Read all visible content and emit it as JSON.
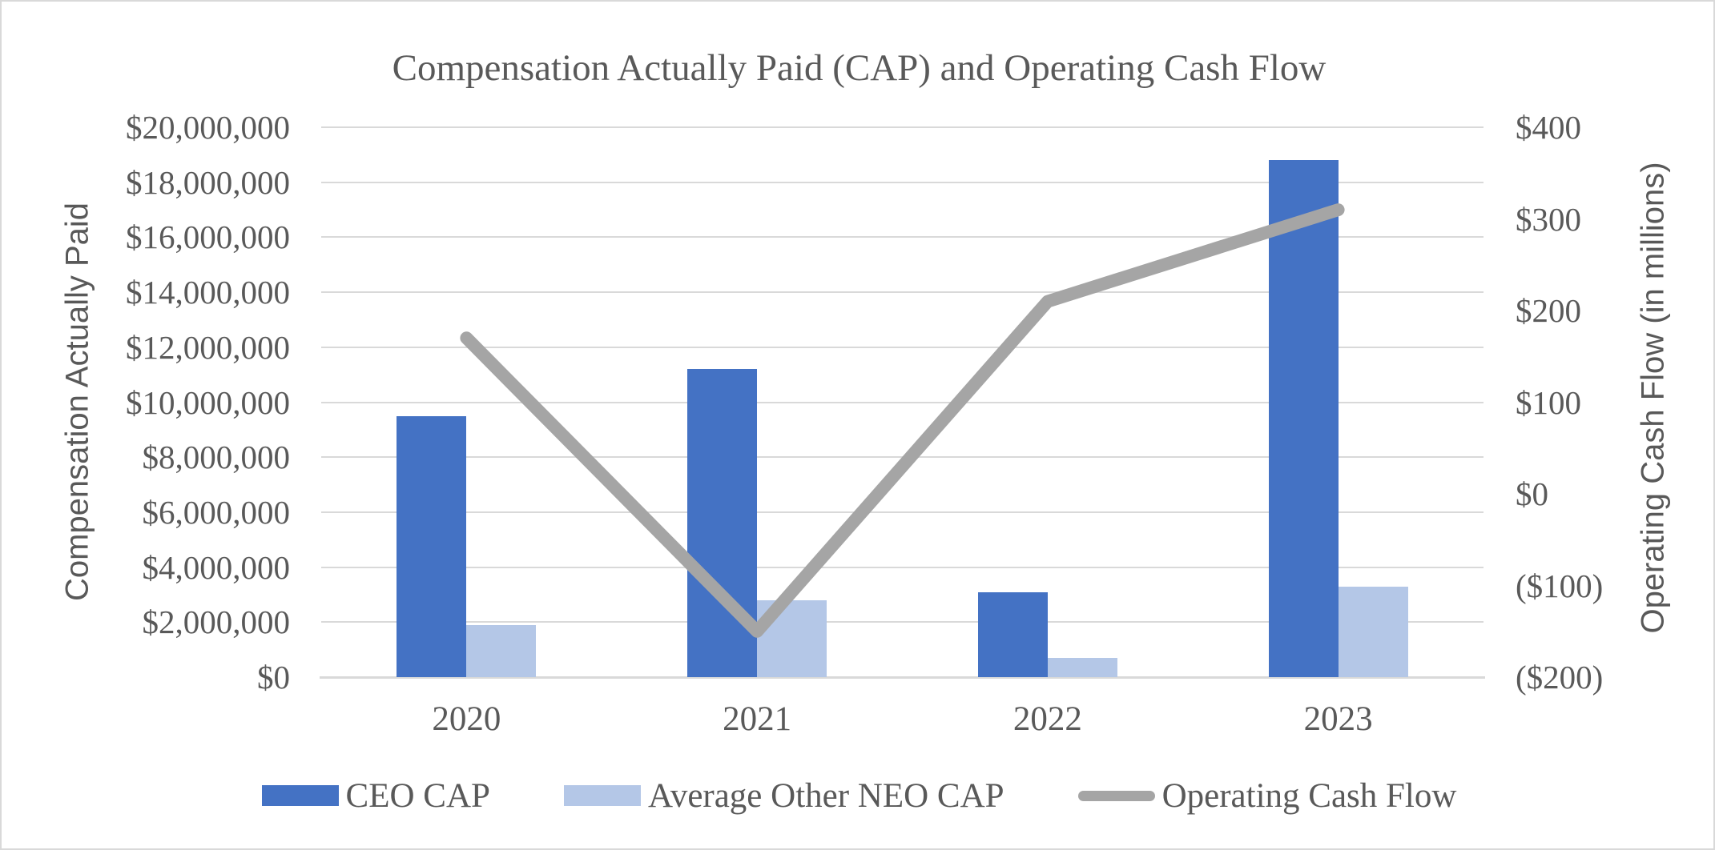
{
  "title": "Compensation Actually Paid (CAP) and Operating Cash Flow",
  "left_axis": {
    "title": "Compensation Actually Paid",
    "tick_labels": [
      "$20,000,000",
      "$18,000,000",
      "$16,000,000",
      "$14,000,000",
      "$12,000,000",
      "$10,000,000",
      "$8,000,000",
      "$6,000,000",
      "$4,000,000",
      "$2,000,000",
      "$0"
    ]
  },
  "right_axis": {
    "title": "Operating Cash Flow (in millions)",
    "tick_labels": [
      "$400",
      "$300",
      "$200",
      "$100",
      "$0",
      "($100)",
      "($200)"
    ]
  },
  "colors": {
    "ceo_bar": "#4472C4",
    "neo_bar": "#B4C7E7",
    "line": "#A5A5A5",
    "gridline": "#D9D9D9",
    "text": "#595959"
  },
  "chart_data": {
    "type": "combo",
    "categories": [
      "2020",
      "2021",
      "2022",
      "2023"
    ],
    "series": [
      {
        "name": "CEO CAP",
        "type": "bar",
        "axis": "left",
        "color": "#4472C4",
        "values": [
          9500000,
          11200000,
          3100000,
          18800000
        ]
      },
      {
        "name": "Average Other NEO CAP",
        "type": "bar",
        "axis": "left",
        "color": "#B4C7E7",
        "values": [
          1900000,
          2800000,
          700000,
          3300000
        ]
      },
      {
        "name": "Operating Cash Flow",
        "type": "line",
        "axis": "right",
        "color": "#A5A5A5",
        "values": [
          170,
          -150,
          210,
          310
        ]
      }
    ],
    "title": "Compensation Actually Paid (CAP) and Operating Cash Flow",
    "left_ylabel": "Compensation Actually Paid",
    "right_ylabel": "Operating Cash Flow (in millions)",
    "left_ylim": [
      0,
      20000000
    ],
    "left_step": 2000000,
    "right_ylim": [
      -200,
      400
    ],
    "right_step": 100,
    "grid": true,
    "legend_position": "bottom"
  }
}
